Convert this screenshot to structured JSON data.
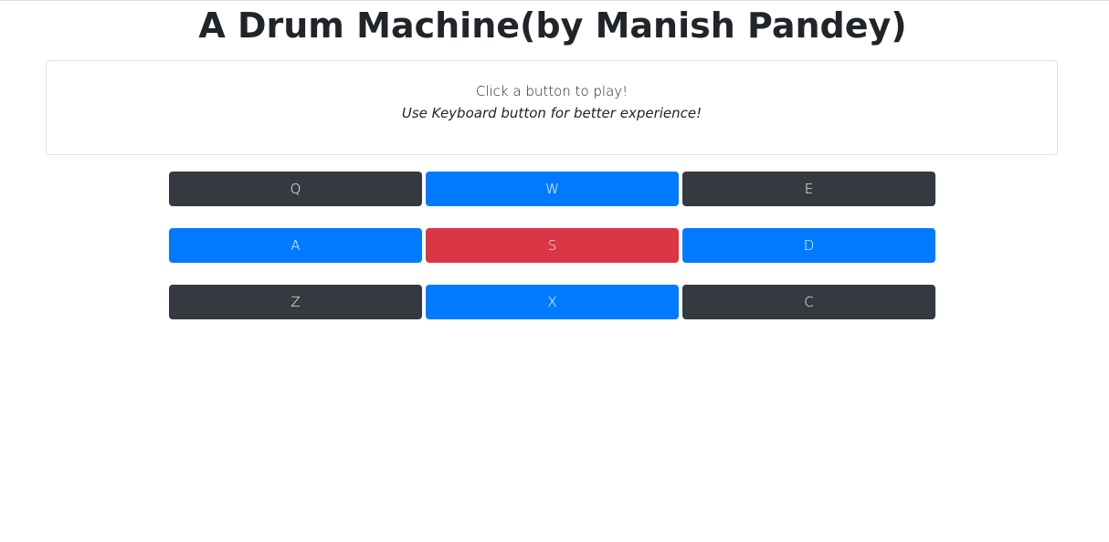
{
  "header": {
    "title": "A Drum Machine(by Manish Pandey)"
  },
  "display": {
    "prompt": "Click a button to play!",
    "hint": "Use Keyboard button for better experience!"
  },
  "pads": [
    [
      {
        "key": "Q",
        "color": "#343a40"
      },
      {
        "key": "W",
        "color": "#007bff"
      },
      {
        "key": "E",
        "color": "#343a40"
      }
    ],
    [
      {
        "key": "A",
        "color": "#007bff"
      },
      {
        "key": "S",
        "color": "#dc3545"
      },
      {
        "key": "D",
        "color": "#007bff"
      }
    ],
    [
      {
        "key": "Z",
        "color": "#343a40"
      },
      {
        "key": "X",
        "color": "#007bff"
      },
      {
        "key": "C",
        "color": "#343a40"
      }
    ]
  ]
}
